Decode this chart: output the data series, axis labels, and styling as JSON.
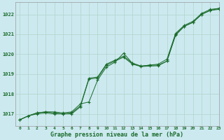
{
  "xlabel": "Graphe pression niveau de la mer (hPa)",
  "xlim": [
    -0.5,
    23
  ],
  "ylim": [
    1016.4,
    1022.6
  ],
  "yticks": [
    1017,
    1018,
    1019,
    1020,
    1021,
    1022
  ],
  "xticks": [
    0,
    1,
    2,
    3,
    4,
    5,
    6,
    7,
    8,
    9,
    10,
    11,
    12,
    13,
    14,
    15,
    16,
    17,
    18,
    19,
    20,
    21,
    22,
    23
  ],
  "bg_color": "#cce9f0",
  "grid_color": "#b0d4c8",
  "line_color": "#1a6b2a",
  "series1": [
    1016.7,
    1016.9,
    1017.05,
    1017.1,
    1017.1,
    1017.05,
    1017.1,
    1017.5,
    1017.6,
    1018.7,
    1019.35,
    1019.6,
    1020.05,
    1019.55,
    1019.4,
    1019.45,
    1019.45,
    1019.65,
    1021.0,
    1021.4,
    1021.6,
    1022.0,
    1022.2,
    1022.3
  ],
  "series2": [
    1016.7,
    1016.9,
    1017.05,
    1017.1,
    1017.05,
    1017.0,
    1017.05,
    1017.4,
    1018.8,
    1018.85,
    1019.5,
    1019.7,
    1019.9,
    1019.55,
    1019.4,
    1019.45,
    1019.5,
    1019.75,
    1021.05,
    1021.45,
    1021.65,
    1022.05,
    1022.25,
    1022.3
  ],
  "series3": [
    1016.7,
    1016.9,
    1017.0,
    1017.05,
    1017.0,
    1017.0,
    1017.0,
    1017.35,
    1018.75,
    1018.8,
    1019.45,
    1019.65,
    1019.85,
    1019.5,
    1019.38,
    1019.4,
    1019.42,
    1019.65,
    1020.95,
    1021.4,
    1021.6,
    1022.0,
    1022.2,
    1022.25
  ],
  "marker": "+",
  "markersize": 3,
  "markeredgewidth": 0.8,
  "linewidth": 0.7
}
